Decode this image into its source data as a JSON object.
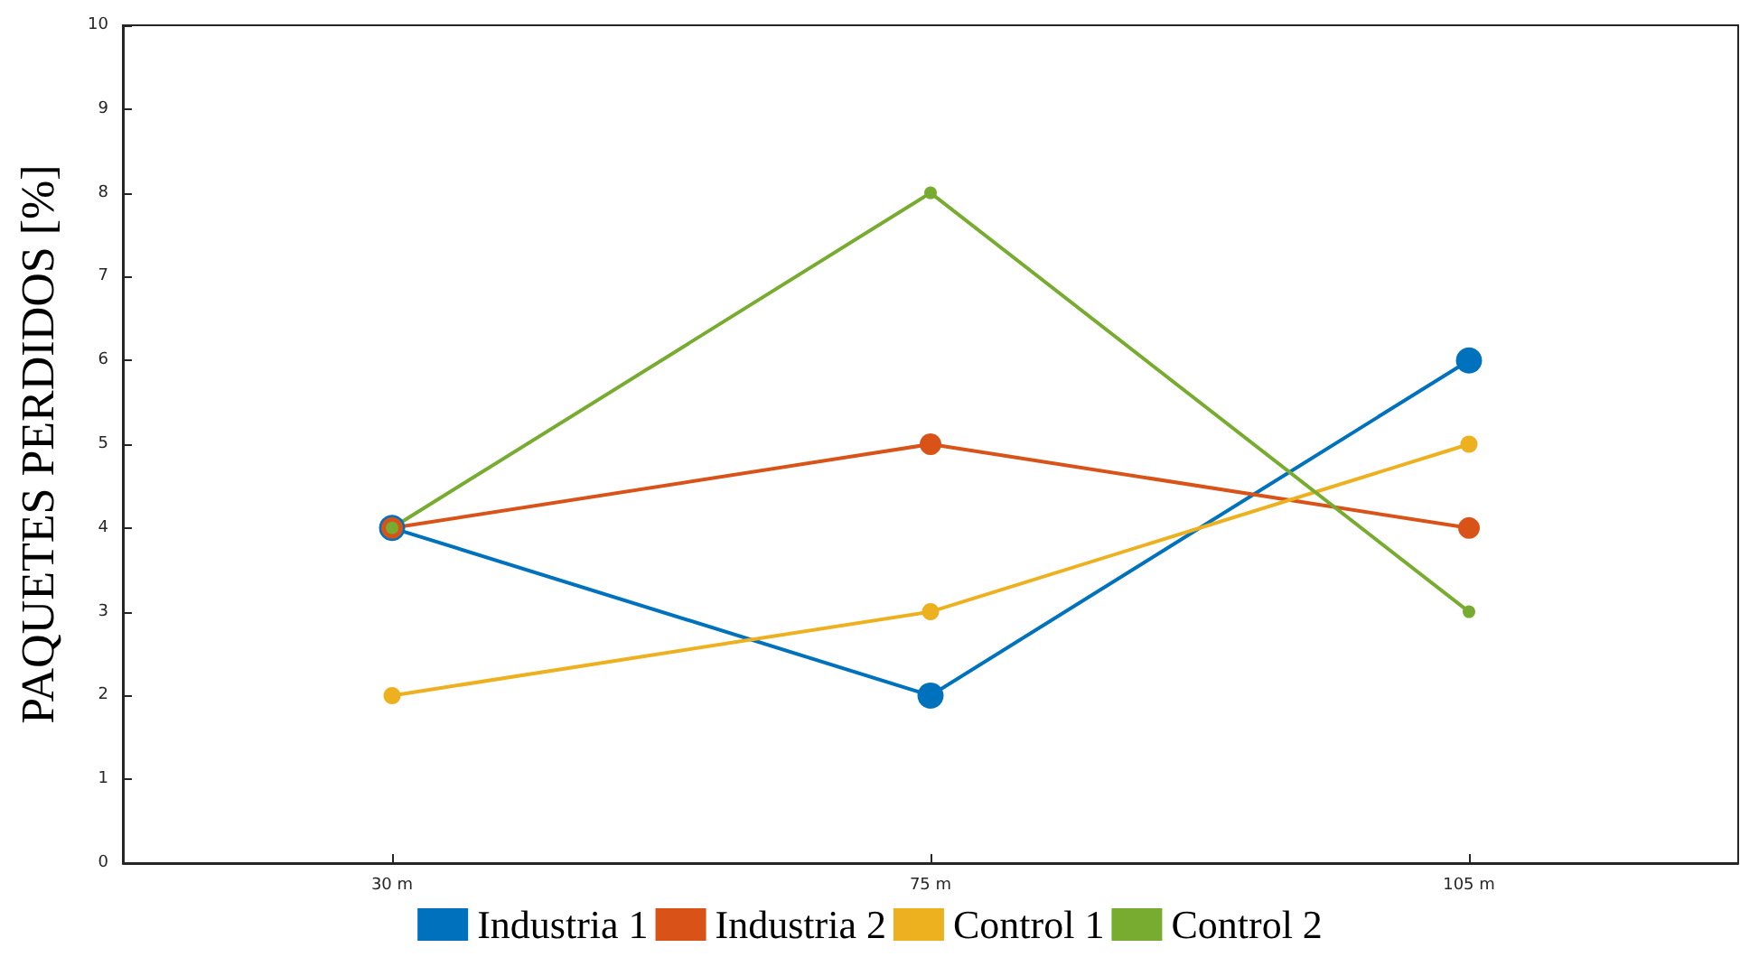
{
  "chart_data": {
    "type": "line",
    "ylabel": "PAQUETES PERDIDOS [%]",
    "categories": [
      "30 m",
      "75 m",
      "105 m"
    ],
    "series": [
      {
        "name": "Industria 1",
        "color": "#0072bd",
        "values": [
          4,
          2,
          6
        ]
      },
      {
        "name": "Industria 2",
        "color": "#d95319",
        "values": [
          4,
          5,
          4
        ]
      },
      {
        "name": "Control 1",
        "color": "#edb120",
        "values": [
          2,
          3,
          5
        ]
      },
      {
        "name": "Control 2",
        "color": "#77ac30",
        "values": [
          4,
          8,
          3
        ]
      }
    ],
    "ylim": [
      0,
      10
    ],
    "yticks": [
      0,
      1,
      2,
      3,
      4,
      5,
      6,
      7,
      8,
      9,
      10
    ],
    "marker": "circle",
    "line_style": "solid",
    "legend": "bottom",
    "grid": false
  }
}
